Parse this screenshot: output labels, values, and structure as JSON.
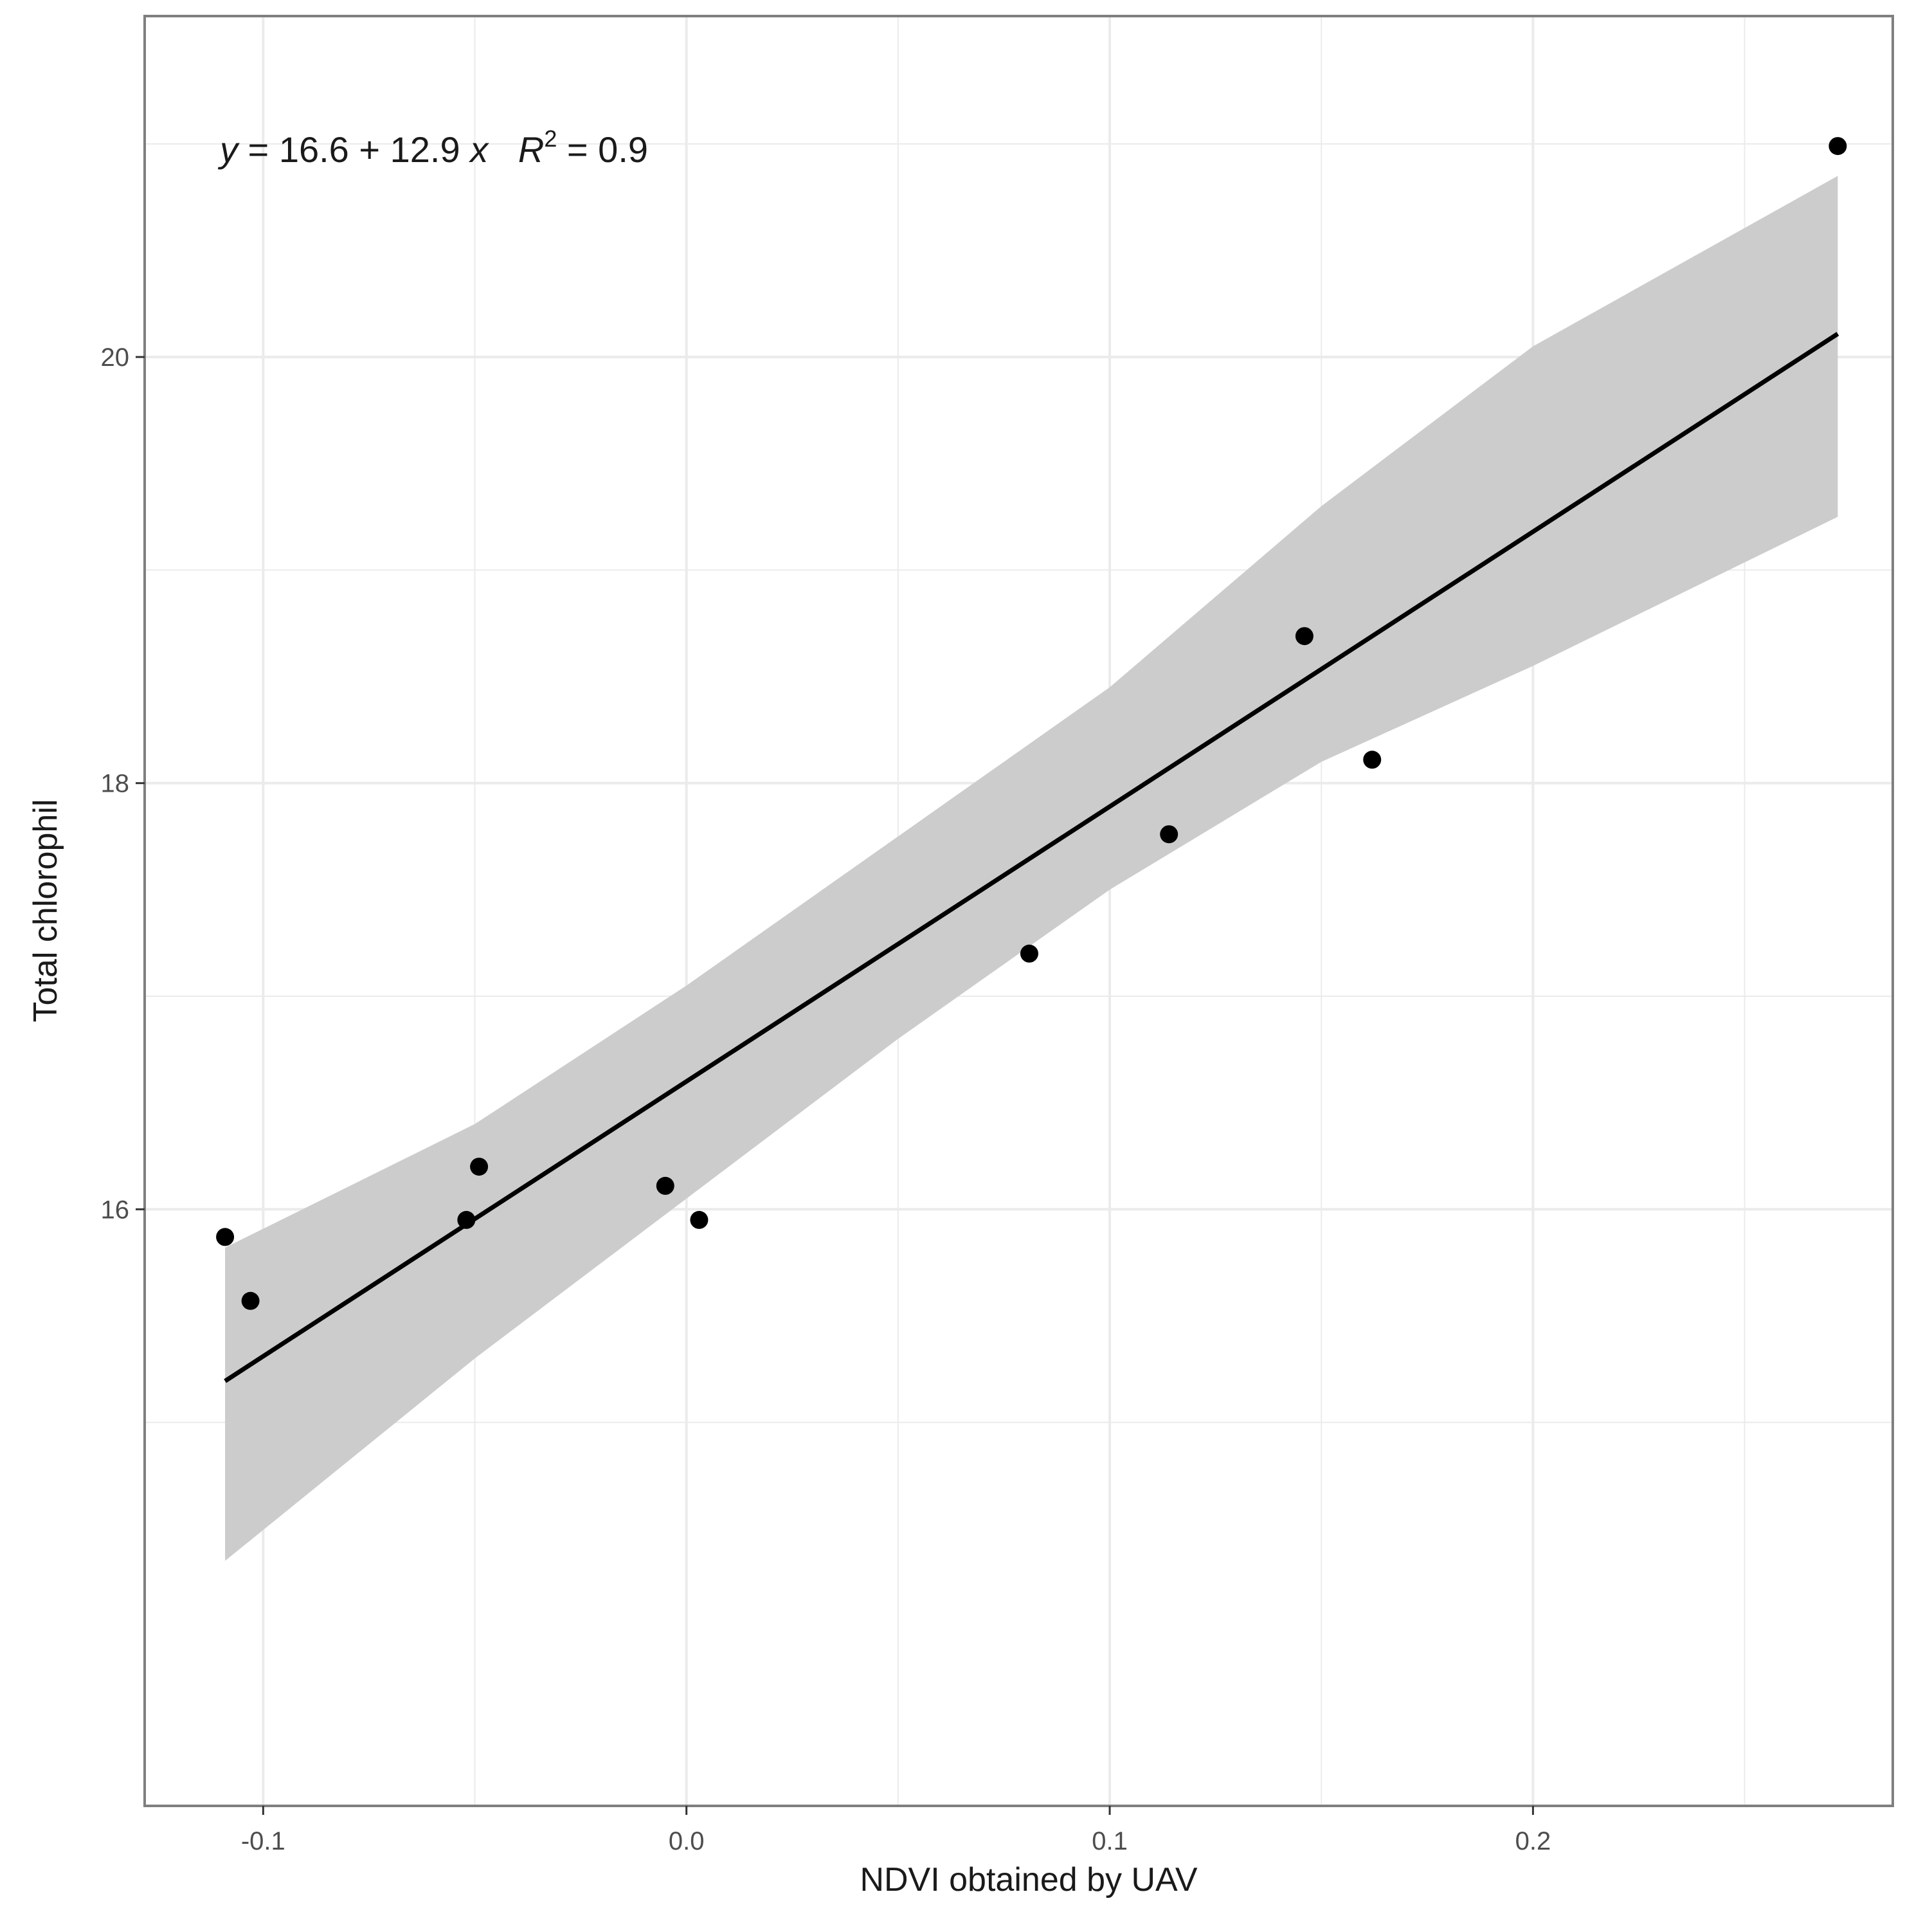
{
  "chart_data": {
    "type": "scatter",
    "title": "",
    "xlabel": "NDVI obtained by UAV",
    "ylabel": "Total chlorophil",
    "xlim": [
      -0.128,
      0.285
    ],
    "ylim": [
      13.2,
      21.6
    ],
    "x_ticks": [
      {
        "value": -0.1,
        "label": "-0.1"
      },
      {
        "value": 0.0,
        "label": "0.0"
      },
      {
        "value": 0.1,
        "label": "0.1"
      },
      {
        "value": 0.2,
        "label": "0.2"
      }
    ],
    "x_minor_ticks": [
      -0.05,
      0.05,
      0.15,
      0.25
    ],
    "y_ticks": [
      {
        "value": 16,
        "label": "16"
      },
      {
        "value": 18,
        "label": "18"
      },
      {
        "value": 20,
        "label": "20"
      }
    ],
    "y_minor_ticks": [
      15,
      17,
      19,
      21
    ],
    "grid": true,
    "points": [
      {
        "x": -0.109,
        "y": 15.87
      },
      {
        "x": -0.103,
        "y": 15.57
      },
      {
        "x": -0.052,
        "y": 15.95
      },
      {
        "x": -0.049,
        "y": 16.2
      },
      {
        "x": -0.005,
        "y": 16.11
      },
      {
        "x": 0.003,
        "y": 15.95
      },
      {
        "x": 0.081,
        "y": 17.2
      },
      {
        "x": 0.114,
        "y": 17.76
      },
      {
        "x": 0.146,
        "y": 18.69
      },
      {
        "x": 0.162,
        "y": 18.11
      },
      {
        "x": 0.272,
        "y": 20.99
      }
    ],
    "fit": {
      "intercept": 16.6,
      "slope": 12.9,
      "x_range": [
        -0.109,
        0.272
      ],
      "confidence_band": [
        {
          "x": -0.109,
          "lower": 14.35,
          "upper": 15.82
        },
        {
          "x": -0.05,
          "lower": 15.3,
          "upper": 16.4
        },
        {
          "x": 0.0,
          "lower": 16.05,
          "upper": 17.05
        },
        {
          "x": 0.05,
          "lower": 16.8,
          "upper": 17.75
        },
        {
          "x": 0.1,
          "lower": 17.5,
          "upper": 18.45
        },
        {
          "x": 0.15,
          "lower": 18.1,
          "upper": 19.3
        },
        {
          "x": 0.2,
          "lower": 18.55,
          "upper": 20.05
        },
        {
          "x": 0.272,
          "lower": 19.25,
          "upper": 20.85
        }
      ]
    },
    "annotation": {
      "y_sym": "y",
      "eq_rest": " = 16.6 + 12.9 ",
      "x_sym": "x",
      "r_sym": "R",
      "r_exp": "2",
      "r_rest": " = 0.9"
    },
    "colors": {
      "points": "#000000",
      "line": "#000000",
      "band": "#cccccc",
      "grid": "#ebebeb",
      "panel_border": "#7f7f7f"
    }
  }
}
